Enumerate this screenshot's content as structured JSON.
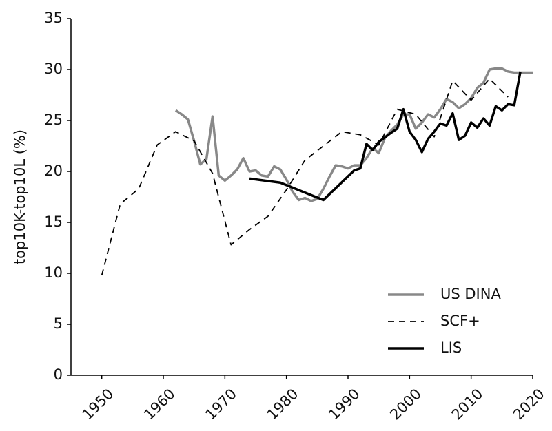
{
  "chart_data": {
    "type": "line",
    "ylabel": "top10K-top10L (%)",
    "xlim": [
      1945,
      2020
    ],
    "xticks": [
      1950,
      1960,
      1970,
      1980,
      1990,
      2000,
      2010,
      2020
    ],
    "ylim": [
      0,
      35
    ],
    "yticks": [
      0,
      5,
      10,
      15,
      20,
      25,
      30,
      35
    ],
    "legend": "lower right",
    "series": [
      {
        "name": "US DINA",
        "color": "#888888",
        "style": "solid",
        "x": [
          1962,
          1963,
          1964,
          1965,
          1966,
          1967,
          1968,
          1969,
          1970,
          1971,
          1972,
          1973,
          1974,
          1975,
          1976,
          1977,
          1978,
          1979,
          1980,
          1981,
          1982,
          1983,
          1984,
          1985,
          1986,
          1987,
          1988,
          1989,
          1990,
          1991,
          1992,
          1993,
          1994,
          1995,
          1996,
          1997,
          1998,
          1999,
          2000,
          2001,
          2002,
          2003,
          2004,
          2005,
          2006,
          2007,
          2008,
          2009,
          2010,
          2011,
          2012,
          2013,
          2014,
          2015,
          2016,
          2017,
          2018,
          2019,
          2020
        ],
        "values": [
          26,
          25.6,
          25.1,
          23,
          20.7,
          21.2,
          25.4,
          19.6,
          19.1,
          19.6,
          20.2,
          21.3,
          20,
          20.1,
          19.6,
          19.5,
          20.5,
          20.2,
          19.2,
          18,
          17.2,
          17.4,
          17.1,
          17.3,
          18.3,
          19.5,
          20.6,
          20.5,
          20.3,
          20.6,
          20.6,
          21.3,
          22.3,
          21.8,
          23.3,
          24,
          24.6,
          25.6,
          25.6,
          24.2,
          24.8,
          25.6,
          25.3,
          26.1,
          27.1,
          26.8,
          26.2,
          26.6,
          27.2,
          28.2,
          28.7,
          30,
          30.1,
          30.1,
          29.8,
          29.7,
          29.7,
          29.7,
          29.7
        ]
      },
      {
        "name": "SCF+",
        "color": "#000000",
        "style": "dashed",
        "x": [
          1950,
          1953,
          1956,
          1959,
          1962,
          1965,
          1968,
          1971,
          1974,
          1977,
          1980,
          1983,
          1986,
          1989,
          1992,
          1995,
          1998,
          2001,
          2004,
          2007,
          2010,
          2013,
          2016
        ],
        "values": [
          9.8,
          16.8,
          18.3,
          22.6,
          23.9,
          23,
          19.8,
          12.8,
          14.3,
          15.6,
          18.2,
          21.1,
          22.5,
          23.9,
          23.6,
          22.6,
          26.1,
          25.6,
          23.4,
          28.9,
          27,
          29.1,
          27.3
        ]
      },
      {
        "name": "LIS",
        "color": "#000000",
        "style": "solid",
        "x": [
          1974,
          1979,
          1986,
          1991,
          1992,
          1993,
          1994,
          1995,
          1997,
          1998,
          1999,
          2000,
          2001,
          2002,
          2003,
          2004,
          2005,
          2006,
          2007,
          2008,
          2009,
          2010,
          2011,
          2012,
          2013,
          2014,
          2015,
          2016,
          2017,
          2018
        ],
        "values": [
          19.3,
          18.9,
          17.2,
          20.1,
          20.3,
          22.7,
          22.1,
          22.9,
          23.8,
          24.2,
          26.1,
          23.9,
          23.1,
          21.9,
          23.2,
          23.9,
          24.7,
          24.5,
          25.7,
          23.1,
          23.5,
          24.8,
          24.3,
          25.2,
          24.5,
          26.4,
          26,
          26.6,
          26.5,
          29.8
        ]
      }
    ]
  }
}
